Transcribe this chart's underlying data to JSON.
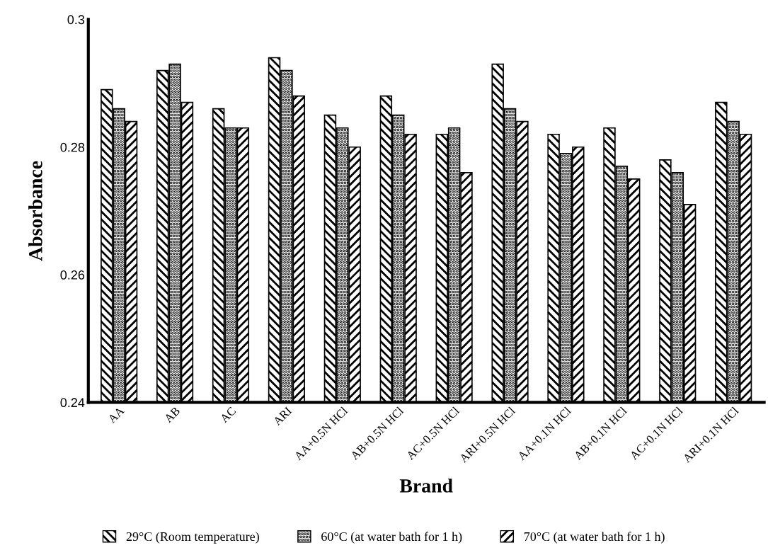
{
  "chart_data": {
    "type": "bar",
    "xlabel": "Brand",
    "ylabel": "Absorbance",
    "categories": [
      "AA",
      "AB",
      "AC",
      "ARI",
      "AA+0.5N HCl",
      "AB+0.5N HCl",
      "AC+0.5N HCl",
      "ARI+0.5N HCl",
      "AA+0.1N HCl",
      "AB+0.1N HCl",
      "AC+0.1N HCl",
      "ARI+0.1N HCl"
    ],
    "series": [
      {
        "name": "29°C (Room temperature)",
        "color": "#000000",
        "values": [
          0.289,
          0.292,
          0.286,
          0.294,
          0.285,
          0.288,
          0.282,
          0.293,
          0.282,
          0.283,
          0.278,
          0.287
        ]
      },
      {
        "name": "60°C (at water bath for 1 h)",
        "color": "#000000",
        "values": [
          0.286,
          0.293,
          0.283,
          0.292,
          0.283,
          0.285,
          0.283,
          0.286,
          0.279,
          0.277,
          0.276,
          0.284
        ]
      },
      {
        "name": "70°C (at water bath for 1 h)",
        "color": "#000000",
        "values": [
          0.284,
          0.287,
          0.283,
          0.288,
          0.28,
          0.282,
          0.276,
          0.284,
          0.28,
          0.275,
          0.271,
          0.282
        ]
      }
    ],
    "ylim": [
      0.24,
      0.3
    ],
    "yticks": [
      0.24,
      0.26,
      0.28,
      {
        "value": 0.3,
        "label": "0.3"
      }
    ],
    "grid": false,
    "legend": "bottom"
  }
}
